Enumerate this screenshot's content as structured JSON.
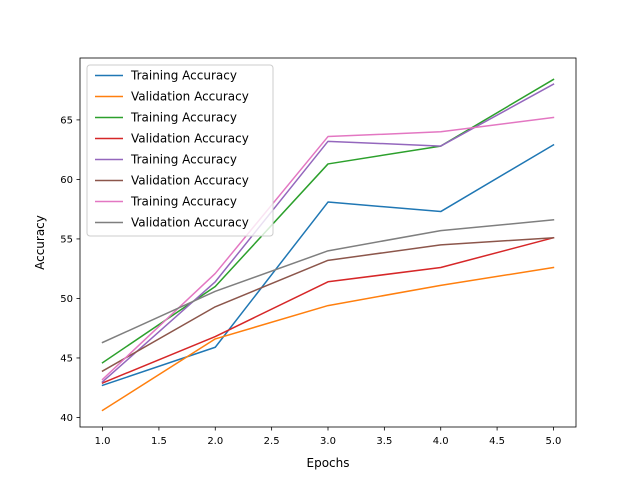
{
  "chart_data": {
    "type": "line",
    "title": "",
    "xlabel": "Epochs",
    "ylabel": "Accuracy",
    "xlim": [
      0.8,
      5.2
    ],
    "ylim": [
      39.2,
      70.2
    ],
    "x_ticks": [
      1.0,
      1.5,
      2.0,
      2.5,
      3.0,
      3.5,
      4.0,
      4.5,
      5.0
    ],
    "x_tick_labels": [
      "1.0",
      "1.5",
      "2.0",
      "2.5",
      "3.0",
      "3.5",
      "4.0",
      "4.5",
      "5.0"
    ],
    "y_ticks": [
      40,
      45,
      50,
      55,
      60,
      65
    ],
    "y_tick_labels": [
      "40",
      "45",
      "50",
      "55",
      "60",
      "65"
    ],
    "grid": false,
    "legend_position": "upper-left",
    "x": [
      1,
      2,
      3,
      4,
      5
    ],
    "series": [
      {
        "name": "Training Accuracy",
        "color": "#1f77b4",
        "values": [
          42.7,
          45.9,
          58.1,
          57.3,
          62.9
        ]
      },
      {
        "name": "Validation Accuracy",
        "color": "#ff7f0e",
        "values": [
          40.6,
          46.6,
          49.4,
          51.1,
          52.6
        ]
      },
      {
        "name": "Training Accuracy",
        "color": "#2ca02c",
        "values": [
          44.6,
          51.0,
          61.3,
          62.8,
          68.4
        ]
      },
      {
        "name": "Validation Accuracy",
        "color": "#d62728",
        "values": [
          42.9,
          46.8,
          51.4,
          52.6,
          55.1
        ]
      },
      {
        "name": "Training Accuracy",
        "color": "#9467bd",
        "values": [
          43.0,
          51.4,
          63.2,
          62.8,
          68.0
        ]
      },
      {
        "name": "Validation Accuracy",
        "color": "#8c564b",
        "values": [
          43.9,
          49.3,
          53.2,
          54.5,
          55.1
        ]
      },
      {
        "name": "Training Accuracy",
        "color": "#e377c2",
        "values": [
          43.2,
          52.1,
          63.6,
          64.0,
          65.2
        ]
      },
      {
        "name": "Validation Accuracy",
        "color": "#7f7f7f",
        "values": [
          46.3,
          50.6,
          54.0,
          55.7,
          56.6
        ]
      }
    ]
  }
}
